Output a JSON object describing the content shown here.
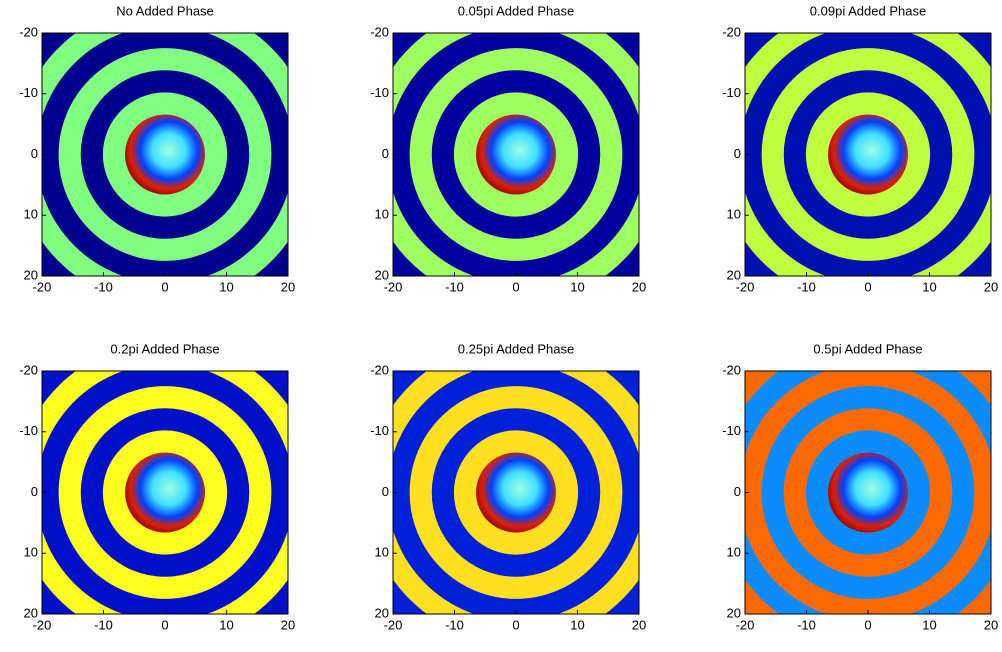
{
  "chart_data": [
    {
      "type": "image",
      "title": "No Added Phase",
      "xlim": [
        -20,
        20
      ],
      "ylim": [
        -20,
        20
      ],
      "y_reversed": true,
      "xticks": [
        -20,
        -10,
        0,
        10,
        20
      ],
      "yticks": [
        -20,
        -10,
        0,
        10,
        20
      ],
      "ring_colors": [
        "#00008f",
        "#80ff80"
      ]
    },
    {
      "type": "image",
      "title": "0.05pi Added Phase",
      "xlim": [
        -20,
        20
      ],
      "ylim": [
        -20,
        20
      ],
      "y_reversed": true,
      "xticks": [
        -20,
        -10,
        0,
        10,
        20
      ],
      "yticks": [
        -20,
        -10,
        0,
        10,
        20
      ],
      "ring_colors": [
        "#00009f",
        "#a0ff60"
      ]
    },
    {
      "type": "image",
      "title": "0.09pi Added Phase",
      "xlim": [
        -20,
        20
      ],
      "ylim": [
        -20,
        20
      ],
      "y_reversed": true,
      "xticks": [
        -20,
        -10,
        0,
        10,
        20
      ],
      "yticks": [
        -20,
        -10,
        0,
        10,
        20
      ],
      "ring_colors": [
        "#0010b0",
        "#c0ff40"
      ]
    },
    {
      "type": "image",
      "title": "0.2pi Added Phase",
      "xlim": [
        -20,
        20
      ],
      "ylim": [
        -20,
        20
      ],
      "y_reversed": true,
      "xticks": [
        -20,
        -10,
        0,
        10,
        20
      ],
      "yticks": [
        -20,
        -10,
        0,
        10,
        20
      ],
      "ring_colors": [
        "#0010c8",
        "#ffff20"
      ]
    },
    {
      "type": "image",
      "title": "0.25pi Added Phase",
      "xlim": [
        -20,
        20
      ],
      "ylim": [
        -20,
        20
      ],
      "y_reversed": true,
      "xticks": [
        -20,
        -10,
        0,
        10,
        20
      ],
      "yticks": [
        -20,
        -10,
        0,
        10,
        20
      ],
      "ring_colors": [
        "#0020d8",
        "#ffe020"
      ]
    },
    {
      "type": "image",
      "title": "0.5pi Added Phase",
      "xlim": [
        -20,
        20
      ],
      "ylim": [
        -20,
        20
      ],
      "y_reversed": true,
      "xticks": [
        -20,
        -10,
        0,
        10,
        20
      ],
      "yticks": [
        -20,
        -10,
        0,
        10,
        20
      ],
      "ring_colors": [
        "#ff6a00",
        "#0a8cff"
      ]
    }
  ]
}
